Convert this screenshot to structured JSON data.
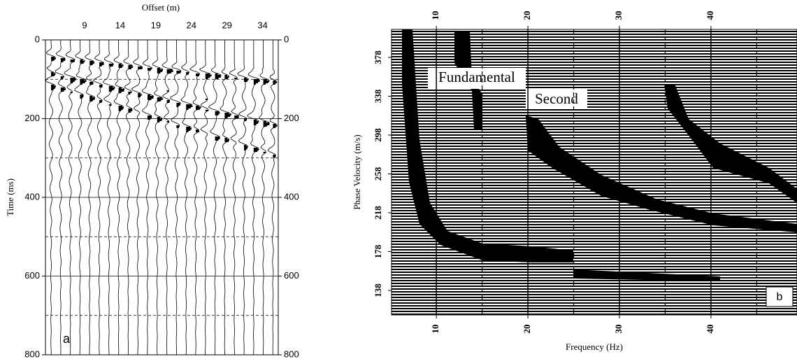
{
  "chart_data": [
    {
      "type": "seismogram",
      "xlabel": "Offset (m)",
      "ylabel": "Time (ms)",
      "panel_label": "a",
      "xlim": [
        3.5,
        36.2
      ],
      "xticks": [
        9,
        14,
        19,
        24,
        29,
        34
      ],
      "ylim": [
        0,
        800
      ],
      "yticks": [
        0,
        200,
        400,
        600,
        800
      ],
      "grid": true
    },
    {
      "type": "dispersion",
      "xlabel": "Frequency (Hz)",
      "ylabel": "Phase Velocity (m/s)",
      "panel_label": "b",
      "annotations": [
        "Fundamental",
        "Second"
      ],
      "xlim": [
        5.1,
        49.4
      ],
      "xticks": [
        10,
        20,
        30,
        40
      ],
      "ylim": [
        112.8,
        406.8
      ],
      "yticks": [
        138,
        178,
        218,
        258,
        298,
        338,
        378
      ],
      "grid": true
    }
  ]
}
